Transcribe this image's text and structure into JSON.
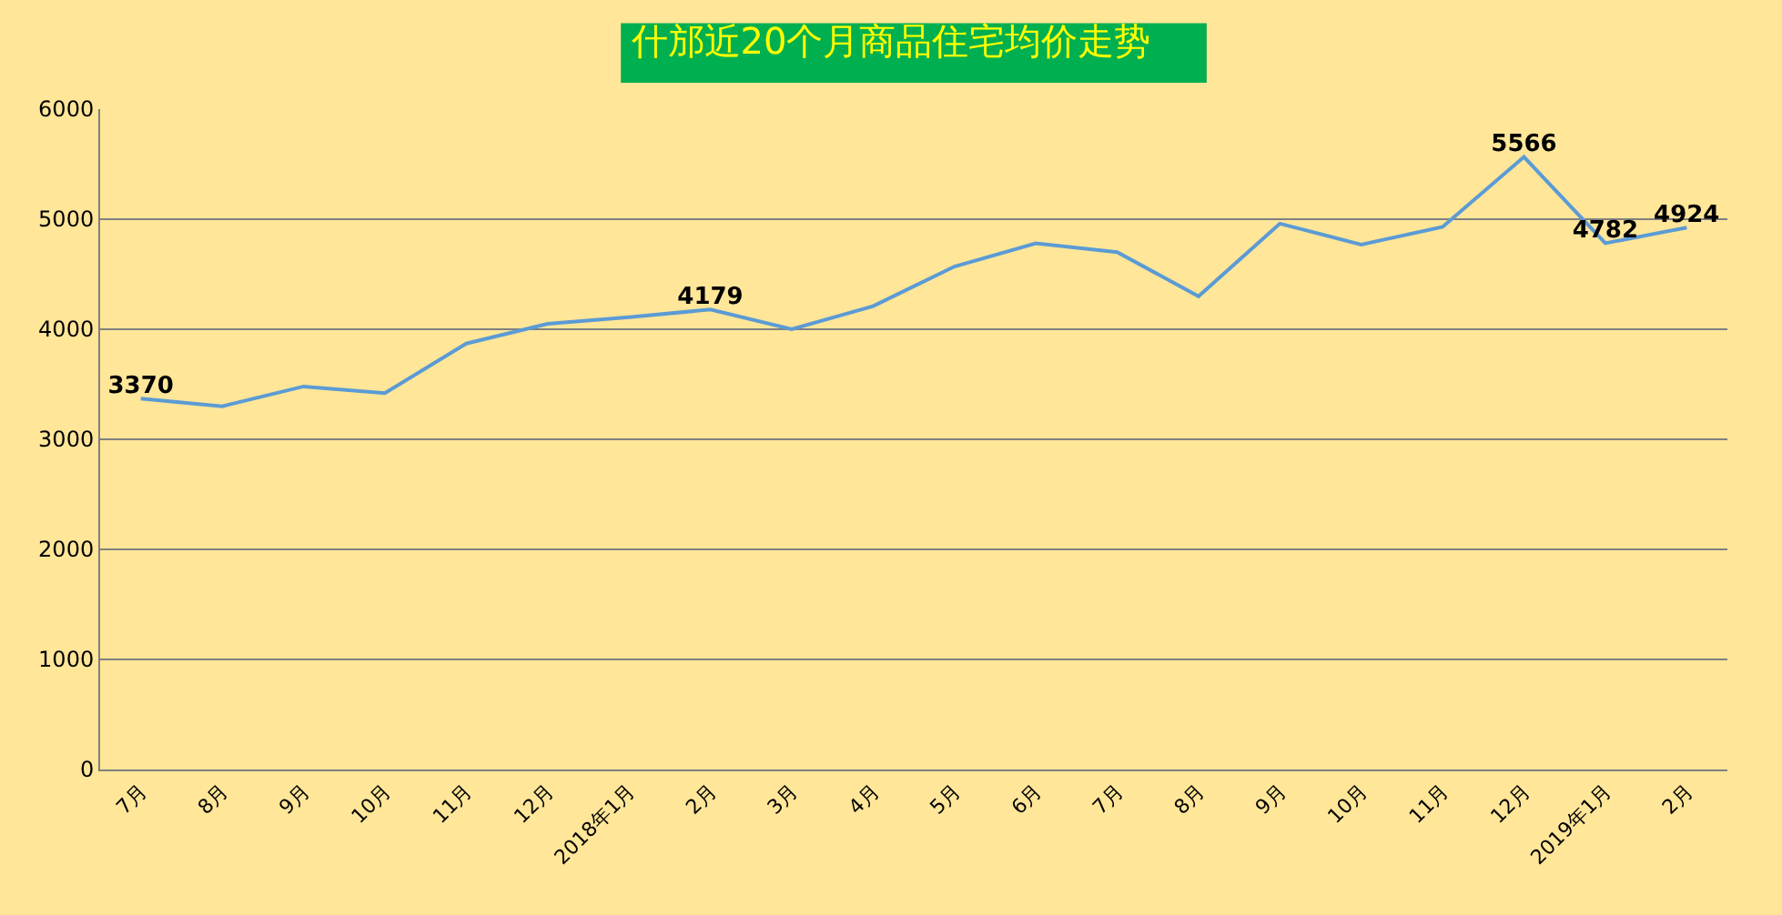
{
  "chart_data": {
    "type": "line",
    "title": "什邡近20个月商品住宅均价走势",
    "categories": [
      "7月",
      "8月",
      "9月",
      "10月",
      "11月",
      "12月",
      "2018年1月",
      "2月",
      "3月",
      "4月",
      "5月",
      "6月",
      "7月",
      "8月",
      "9月",
      "10月",
      "11月",
      "12月",
      "2019年1月",
      "2月"
    ],
    "series": [
      {
        "color": "#5b9bd5",
        "values": [
          3370,
          3300,
          3480,
          3420,
          3870,
          4050,
          4110,
          4179,
          4000,
          4210,
          4570,
          4780,
          4700,
          4300,
          4960,
          4770,
          4930,
          5566,
          4782,
          4924
        ],
        "value_labels": [
          "3370",
          null,
          null,
          null,
          null,
          null,
          null,
          "4179",
          null,
          null,
          null,
          null,
          null,
          null,
          null,
          null,
          null,
          "5566",
          "4782",
          "4924"
        ]
      }
    ],
    "ylim": [
      0,
      6000
    ],
    "yticks": [
      0,
      1000,
      2000,
      3000,
      4000,
      5000,
      6000
    ],
    "grid": "y",
    "marker": "none",
    "line_style": "solid"
  }
}
